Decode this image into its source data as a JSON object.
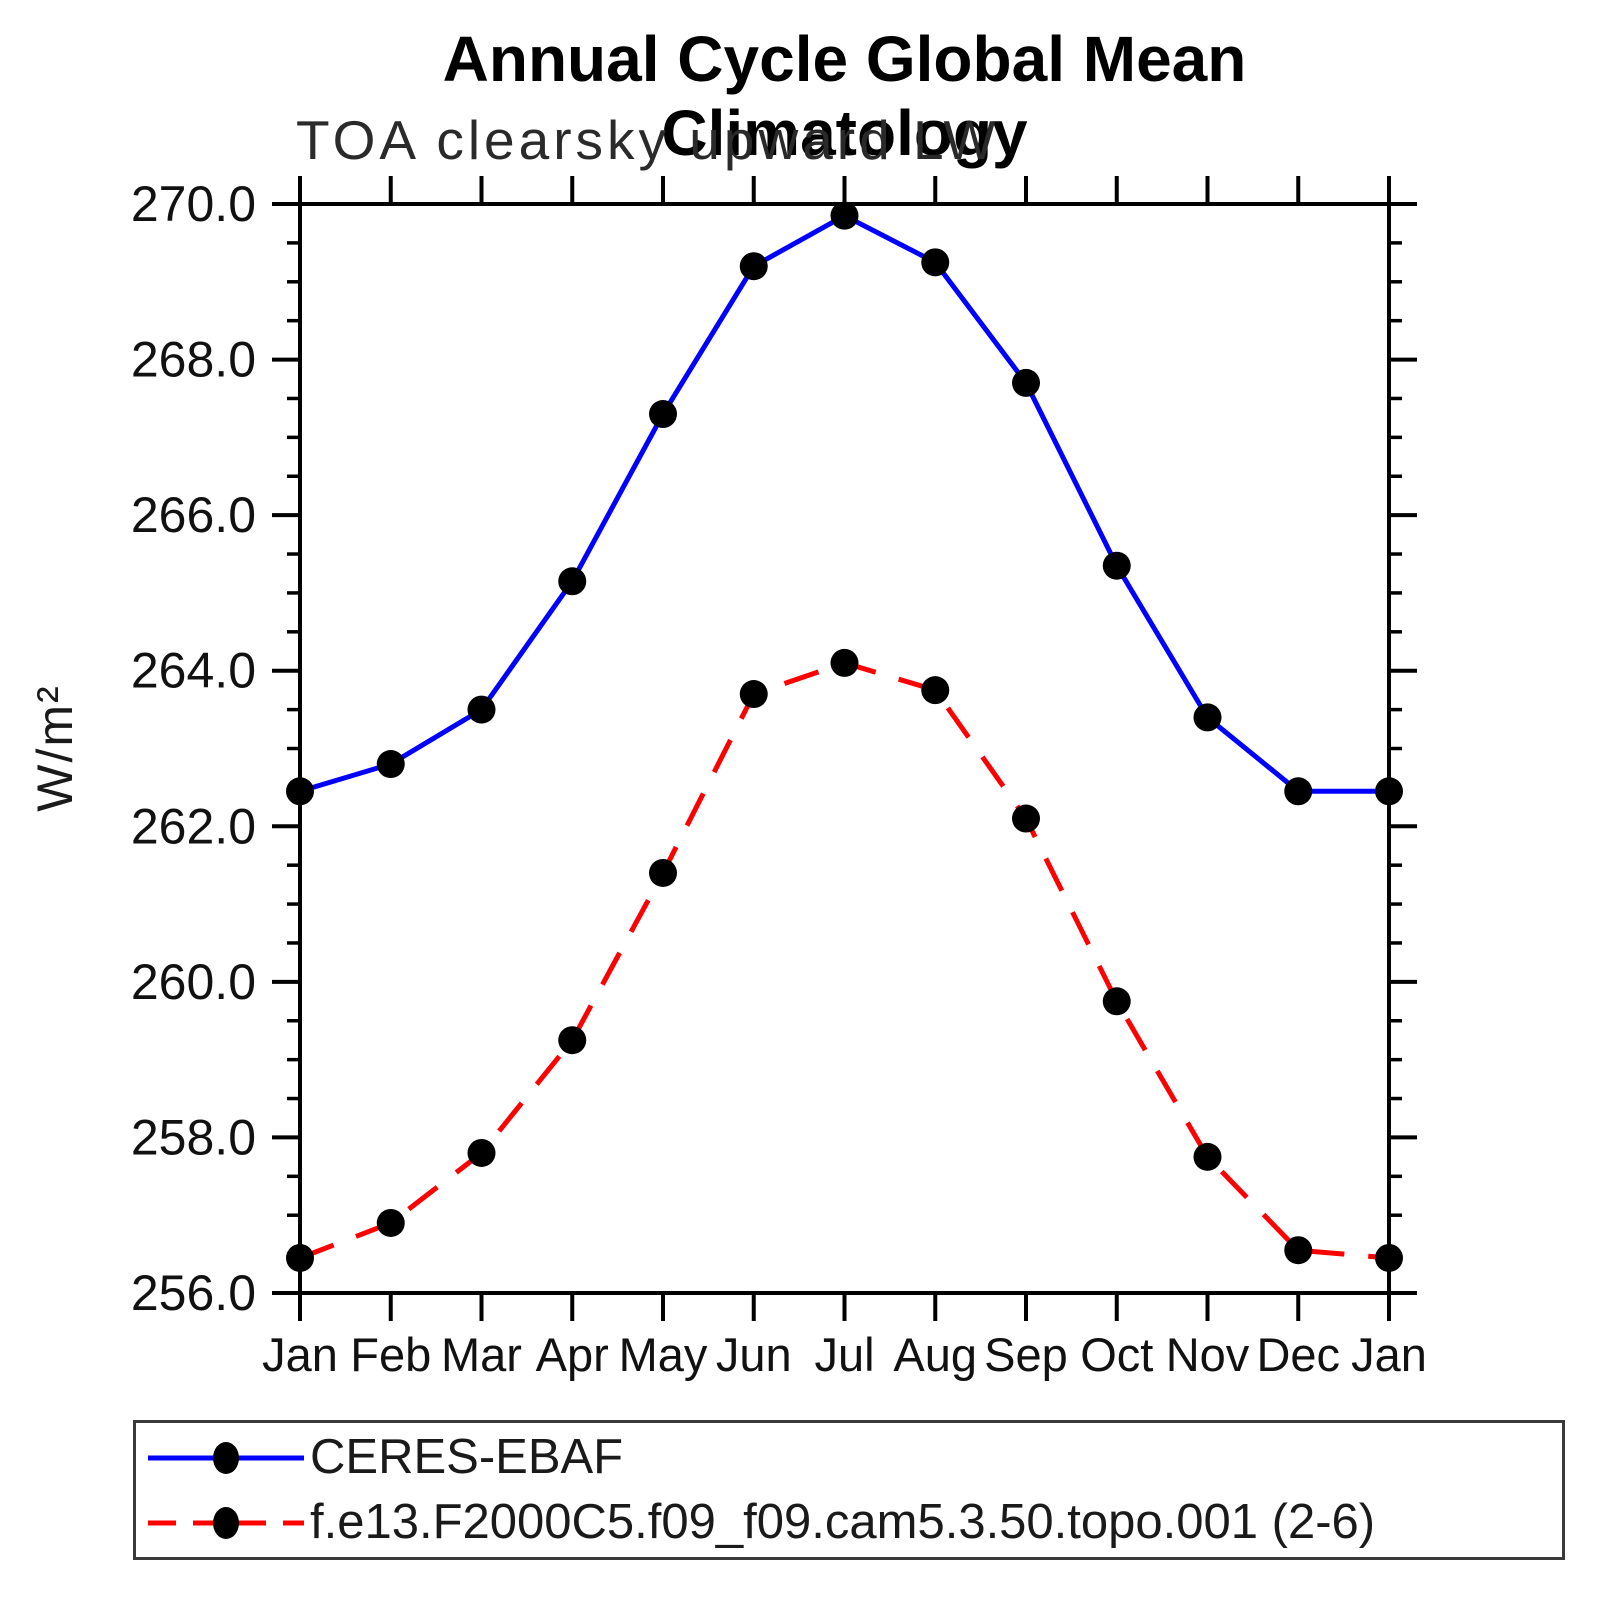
{
  "header": {
    "title": "Annual Cycle Global Mean Climatology",
    "subtitle": "TOA clearsky upward LW"
  },
  "chart_data": {
    "type": "line",
    "title": "Annual Cycle Global Mean Climatology",
    "subtitle": "TOA clearsky upward LW",
    "xlabel": "",
    "ylabel": "W/m²",
    "categories": [
      "Jan",
      "Feb",
      "Mar",
      "Apr",
      "May",
      "Jun",
      "Jul",
      "Aug",
      "Sep",
      "Oct",
      "Nov",
      "Dec",
      "Jan"
    ],
    "series": [
      {
        "name": "CERES-EBAF",
        "color": "#0000ff",
        "line_style": "solid",
        "marker": "circle",
        "marker_color": "#000000",
        "values": [
          262.45,
          262.8,
          263.5,
          265.15,
          267.3,
          269.2,
          269.85,
          269.25,
          267.7,
          265.35,
          263.4,
          262.45,
          262.45
        ]
      },
      {
        "name": "f.e13.F2000C5.f09_f09.cam5.3.50.topo.001 (2-6)",
        "color": "#ff0000",
        "line_style": "dashed",
        "marker": "circle",
        "marker_color": "#000000",
        "values": [
          256.45,
          256.9,
          257.8,
          259.25,
          261.4,
          263.7,
          264.1,
          263.75,
          262.1,
          259.75,
          257.75,
          256.55,
          256.45
        ]
      }
    ],
    "ylim": [
      256.0,
      270.0
    ],
    "yticks": [
      256,
      258,
      260,
      262,
      264,
      266,
      268,
      270
    ],
    "ytick_labels": [
      "256.0",
      "258.0",
      "260.0",
      "262.0",
      "264.0",
      "266.0",
      "268.0",
      "270.0"
    ],
    "yminor_step": 0.5,
    "grid": false,
    "legend_position": "bottom",
    "axis_color": "#000000"
  },
  "legend": {
    "items": [
      {
        "label": "CERES-EBAF"
      },
      {
        "label": "f.e13.F2000C5.f09_f09.cam5.3.50.topo.001 (2-6)"
      }
    ]
  }
}
